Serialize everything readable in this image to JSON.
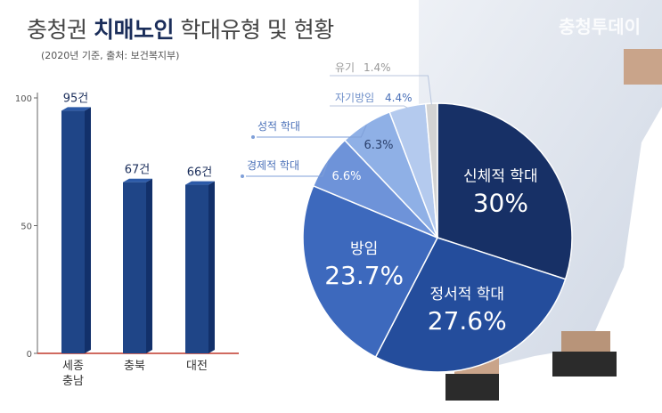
{
  "header": {
    "title_part1": "충청권 ",
    "title_strong": "치매노인",
    "title_part2": " 학대유형 및 현황",
    "subtitle": "(2020년 기준, 출처: 보건복지부)",
    "watermark": "충청투데이"
  },
  "colors": {
    "bar": "#1f4587",
    "bar_side": "#12306a",
    "axis": "#c0392b",
    "pie_label_leader": "#7f9fd8"
  },
  "chart_data": [
    {
      "type": "bar",
      "categories": [
        [
          "세종",
          "충남"
        ],
        [
          "충북"
        ],
        [
          "대전"
        ]
      ],
      "values": [
        95,
        67,
        66
      ],
      "value_labels": [
        "95건",
        "67건",
        "66건"
      ],
      "ylim": [
        0,
        100
      ],
      "yticks": [
        0,
        50,
        100
      ],
      "ytick_labels": [
        "0",
        "50",
        "100"
      ],
      "grid": false
    },
    {
      "type": "pie",
      "slices": [
        {
          "label": "신체적 학대",
          "value": 30,
          "value_label": "30%",
          "color": "#173066",
          "text_color": "#ffffff",
          "placement": "inside"
        },
        {
          "label": "정서적 학대",
          "value": 27.6,
          "value_label": "27.6%",
          "color": "#244d9c",
          "text_color": "#ffffff",
          "placement": "inside"
        },
        {
          "label": "방임",
          "value": 23.7,
          "value_label": "23.7%",
          "color": "#3d69bd",
          "text_color": "#ffffff",
          "placement": "inside"
        },
        {
          "label": "경제적 학대",
          "value": 6.6,
          "value_label": "6.6%",
          "color": "#6e93d9",
          "text_color": "#ffffff",
          "placement": "leader",
          "label_color": "#4a70b8"
        },
        {
          "label": "성적 학대",
          "value": 6.3,
          "value_label": "6.3%",
          "color": "#8fb0e6",
          "text_color": "#2a3f6b",
          "placement": "leader",
          "label_color": "#4a70b8"
        },
        {
          "label": "자기방임",
          "value": 4.4,
          "value_label": "4.4%",
          "color": "#b4caee",
          "text_color": "#4a70b8",
          "placement": "outside",
          "label_color": "#6f8fc9"
        },
        {
          "label": "유기",
          "value": 1.4,
          "value_label": "1.4%",
          "color": "#d3d3d3",
          "text_color": "#999999",
          "placement": "outside",
          "label_color": "#9a9a9a"
        }
      ]
    }
  ]
}
